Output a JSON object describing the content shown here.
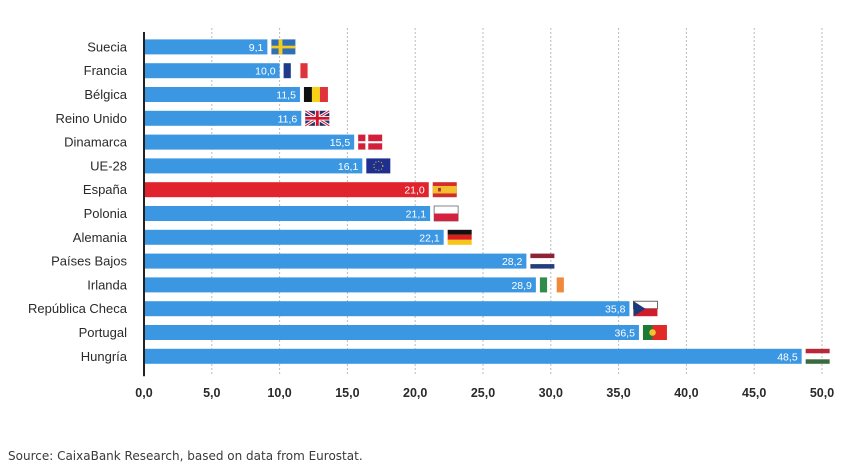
{
  "chart_data": {
    "type": "bar",
    "orientation": "horizontal",
    "title": "",
    "xlabel": "",
    "ylabel": "",
    "xlim": [
      0,
      50
    ],
    "grid": true,
    "legend": "none",
    "categories": [
      "Suecia",
      "Francia",
      "Bélgica",
      "Reino Unido",
      "Dinamarca",
      "UE-28",
      "España",
      "Polonia",
      "Alemania",
      "Países Bajos",
      "Irlanda",
      "República Checa",
      "Portugal",
      "Hungría"
    ],
    "values": [
      9.1,
      10.0,
      11.5,
      11.6,
      15.5,
      16.1,
      21.0,
      21.1,
      22.1,
      28.2,
      28.9,
      35.8,
      36.5,
      48.5
    ],
    "value_labels": [
      "9,1",
      "10,0",
      "11,5",
      "11,6",
      "15,5",
      "16,1",
      "21,0",
      "21,1",
      "22,1",
      "28,2",
      "28,9",
      "35,8",
      "36,5",
      "48,5"
    ],
    "flags": [
      "sweden-flag",
      "france-flag",
      "belgium-flag",
      "uk-flag",
      "denmark-flag",
      "eu-flag",
      "spain-flag",
      "poland-flag",
      "germany-flag",
      "netherlands-flag",
      "ireland-flag",
      "czech-flag",
      "portugal-flag",
      "hungary-flag"
    ],
    "highlight": "España",
    "xticks": [
      0,
      5,
      10,
      15,
      20,
      25,
      30,
      35,
      40,
      45,
      50
    ],
    "xtick_labels": [
      "0,0",
      "5,0",
      "10,0",
      "15,0",
      "20,0",
      "25,0",
      "30,0",
      "35,0",
      "40,0",
      "45,0",
      "50,0"
    ],
    "colors": {
      "bar": "#3c97e2",
      "highlight": "#e0232d",
      "axis": "#222222",
      "grid": "#bbbbbb"
    }
  },
  "source": "Source: CaixaBank Research, based on data from Eurostat."
}
